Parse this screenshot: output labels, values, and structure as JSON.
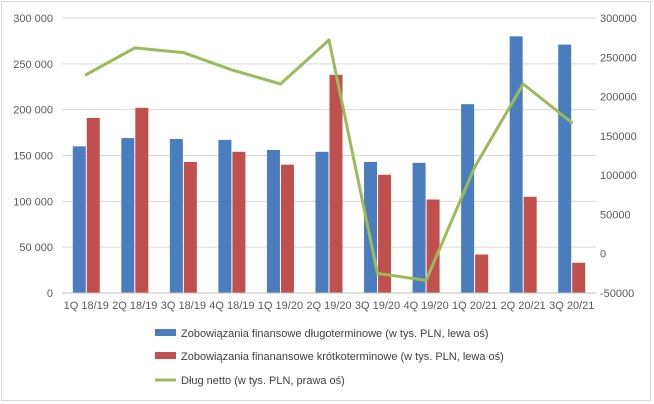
{
  "chart_data": {
    "type": "bar",
    "categories": [
      "1Q 18/19",
      "2Q 18/19",
      "3Q 18/19",
      "4Q 18/19",
      "1Q 19/20",
      "2Q 19/20",
      "3Q 19/20",
      "4Q 19/20",
      "1Q 20/21",
      "2Q 20/21",
      "3Q 20/21"
    ],
    "series": [
      {
        "name": "Zobowiązania finansowe długoterminowe (w tys. PLN, lewa oś)",
        "type": "bar",
        "axis": "left",
        "color": "#4a7dbd",
        "values": [
          160000,
          169000,
          168000,
          167000,
          156000,
          154000,
          143000,
          142000,
          206000,
          280000,
          271000
        ]
      },
      {
        "name": "Zobowiązania finanansowe krótkoterminowe (w tys. PLN, lewa oś)",
        "type": "bar",
        "axis": "left",
        "color": "#c0504d",
        "values": [
          191000,
          202000,
          143000,
          154000,
          140000,
          238000,
          129000,
          102000,
          42000,
          105000,
          33000
        ]
      },
      {
        "name": "Dług netto (w tys. PLN, prawa oś)",
        "type": "line",
        "axis": "right",
        "color": "#9bbb59",
        "values": [
          228000,
          262000,
          256000,
          234000,
          216000,
          272000,
          -25000,
          -34000,
          110000,
          216000,
          167000
        ]
      }
    ],
    "left_axis": {
      "ylim": [
        0,
        300000
      ],
      "ticks": [
        0,
        50000,
        100000,
        150000,
        200000,
        250000,
        300000
      ],
      "tick_labels": [
        "0",
        "50 000",
        "100 000",
        "150 000",
        "200 000",
        "250 000",
        "300 000"
      ]
    },
    "right_axis": {
      "ylim": [
        -50000,
        300000
      ],
      "ticks": [
        -50000,
        0,
        50000,
        100000,
        150000,
        200000,
        250000,
        300000
      ],
      "tick_labels": [
        "-50000",
        "0",
        "50000",
        "100000",
        "150000",
        "200000",
        "250000",
        "300000"
      ]
    },
    "grid": true,
    "legend_position": "bottom",
    "title": "",
    "xlabel": "",
    "ylabel": ""
  }
}
